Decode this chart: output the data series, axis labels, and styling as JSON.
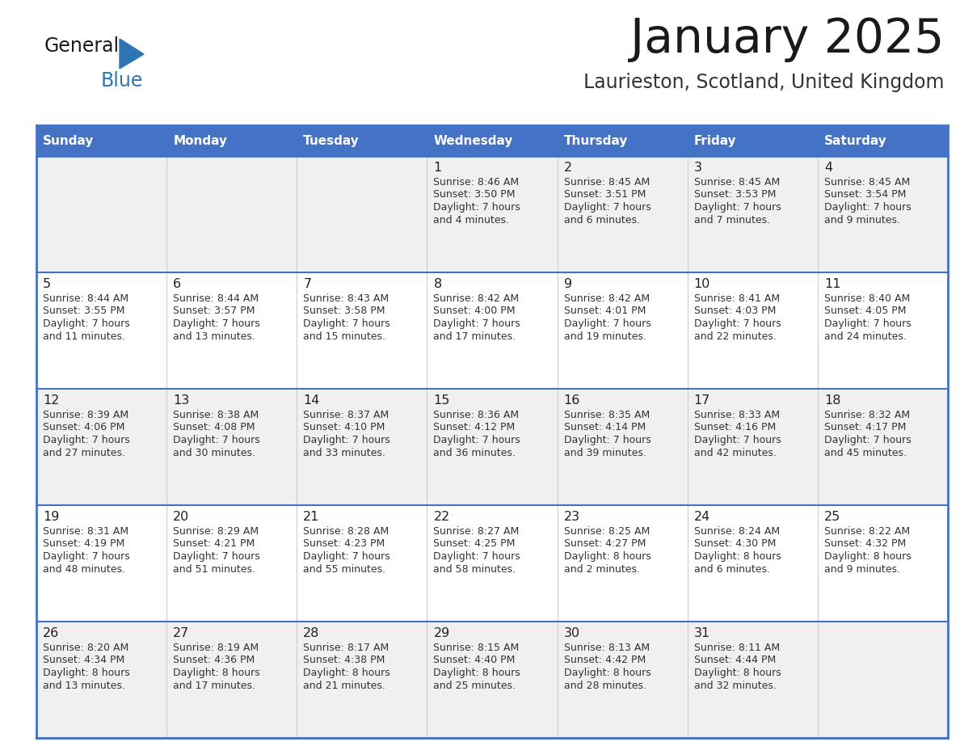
{
  "title": "January 2025",
  "subtitle": "Laurieston, Scotland, United Kingdom",
  "days_of_week": [
    "Sunday",
    "Monday",
    "Tuesday",
    "Wednesday",
    "Thursday",
    "Friday",
    "Saturday"
  ],
  "header_bg": "#4472C4",
  "header_text": "#FFFFFF",
  "cell_bg_odd": "#F0F0F0",
  "cell_bg_even": "#FFFFFF",
  "cell_border_color": "#4472C4",
  "cell_inner_border": "#AAAAAA",
  "day_num_color": "#222222",
  "content_color": "#333333",
  "title_color": "#1a1a1a",
  "subtitle_color": "#333333",
  "logo_general_color": "#1a1a1a",
  "logo_blue_color": "#2E75B6",
  "logo_triangle_color": "#2E75B6",
  "weeks": [
    [
      {
        "day": null,
        "lines": null
      },
      {
        "day": null,
        "lines": null
      },
      {
        "day": null,
        "lines": null
      },
      {
        "day": "1",
        "lines": [
          "Sunrise: 8:46 AM",
          "Sunset: 3:50 PM",
          "Daylight: 7 hours",
          "and 4 minutes."
        ]
      },
      {
        "day": "2",
        "lines": [
          "Sunrise: 8:45 AM",
          "Sunset: 3:51 PM",
          "Daylight: 7 hours",
          "and 6 minutes."
        ]
      },
      {
        "day": "3",
        "lines": [
          "Sunrise: 8:45 AM",
          "Sunset: 3:53 PM",
          "Daylight: 7 hours",
          "and 7 minutes."
        ]
      },
      {
        "day": "4",
        "lines": [
          "Sunrise: 8:45 AM",
          "Sunset: 3:54 PM",
          "Daylight: 7 hours",
          "and 9 minutes."
        ]
      }
    ],
    [
      {
        "day": "5",
        "lines": [
          "Sunrise: 8:44 AM",
          "Sunset: 3:55 PM",
          "Daylight: 7 hours",
          "and 11 minutes."
        ]
      },
      {
        "day": "6",
        "lines": [
          "Sunrise: 8:44 AM",
          "Sunset: 3:57 PM",
          "Daylight: 7 hours",
          "and 13 minutes."
        ]
      },
      {
        "day": "7",
        "lines": [
          "Sunrise: 8:43 AM",
          "Sunset: 3:58 PM",
          "Daylight: 7 hours",
          "and 15 minutes."
        ]
      },
      {
        "day": "8",
        "lines": [
          "Sunrise: 8:42 AM",
          "Sunset: 4:00 PM",
          "Daylight: 7 hours",
          "and 17 minutes."
        ]
      },
      {
        "day": "9",
        "lines": [
          "Sunrise: 8:42 AM",
          "Sunset: 4:01 PM",
          "Daylight: 7 hours",
          "and 19 minutes."
        ]
      },
      {
        "day": "10",
        "lines": [
          "Sunrise: 8:41 AM",
          "Sunset: 4:03 PM",
          "Daylight: 7 hours",
          "and 22 minutes."
        ]
      },
      {
        "day": "11",
        "lines": [
          "Sunrise: 8:40 AM",
          "Sunset: 4:05 PM",
          "Daylight: 7 hours",
          "and 24 minutes."
        ]
      }
    ],
    [
      {
        "day": "12",
        "lines": [
          "Sunrise: 8:39 AM",
          "Sunset: 4:06 PM",
          "Daylight: 7 hours",
          "and 27 minutes."
        ]
      },
      {
        "day": "13",
        "lines": [
          "Sunrise: 8:38 AM",
          "Sunset: 4:08 PM",
          "Daylight: 7 hours",
          "and 30 minutes."
        ]
      },
      {
        "day": "14",
        "lines": [
          "Sunrise: 8:37 AM",
          "Sunset: 4:10 PM",
          "Daylight: 7 hours",
          "and 33 minutes."
        ]
      },
      {
        "day": "15",
        "lines": [
          "Sunrise: 8:36 AM",
          "Sunset: 4:12 PM",
          "Daylight: 7 hours",
          "and 36 minutes."
        ]
      },
      {
        "day": "16",
        "lines": [
          "Sunrise: 8:35 AM",
          "Sunset: 4:14 PM",
          "Daylight: 7 hours",
          "and 39 minutes."
        ]
      },
      {
        "day": "17",
        "lines": [
          "Sunrise: 8:33 AM",
          "Sunset: 4:16 PM",
          "Daylight: 7 hours",
          "and 42 minutes."
        ]
      },
      {
        "day": "18",
        "lines": [
          "Sunrise: 8:32 AM",
          "Sunset: 4:17 PM",
          "Daylight: 7 hours",
          "and 45 minutes."
        ]
      }
    ],
    [
      {
        "day": "19",
        "lines": [
          "Sunrise: 8:31 AM",
          "Sunset: 4:19 PM",
          "Daylight: 7 hours",
          "and 48 minutes."
        ]
      },
      {
        "day": "20",
        "lines": [
          "Sunrise: 8:29 AM",
          "Sunset: 4:21 PM",
          "Daylight: 7 hours",
          "and 51 minutes."
        ]
      },
      {
        "day": "21",
        "lines": [
          "Sunrise: 8:28 AM",
          "Sunset: 4:23 PM",
          "Daylight: 7 hours",
          "and 55 minutes."
        ]
      },
      {
        "day": "22",
        "lines": [
          "Sunrise: 8:27 AM",
          "Sunset: 4:25 PM",
          "Daylight: 7 hours",
          "and 58 minutes."
        ]
      },
      {
        "day": "23",
        "lines": [
          "Sunrise: 8:25 AM",
          "Sunset: 4:27 PM",
          "Daylight: 8 hours",
          "and 2 minutes."
        ]
      },
      {
        "day": "24",
        "lines": [
          "Sunrise: 8:24 AM",
          "Sunset: 4:30 PM",
          "Daylight: 8 hours",
          "and 6 minutes."
        ]
      },
      {
        "day": "25",
        "lines": [
          "Sunrise: 8:22 AM",
          "Sunset: 4:32 PM",
          "Daylight: 8 hours",
          "and 9 minutes."
        ]
      }
    ],
    [
      {
        "day": "26",
        "lines": [
          "Sunrise: 8:20 AM",
          "Sunset: 4:34 PM",
          "Daylight: 8 hours",
          "and 13 minutes."
        ]
      },
      {
        "day": "27",
        "lines": [
          "Sunrise: 8:19 AM",
          "Sunset: 4:36 PM",
          "Daylight: 8 hours",
          "and 17 minutes."
        ]
      },
      {
        "day": "28",
        "lines": [
          "Sunrise: 8:17 AM",
          "Sunset: 4:38 PM",
          "Daylight: 8 hours",
          "and 21 minutes."
        ]
      },
      {
        "day": "29",
        "lines": [
          "Sunrise: 8:15 AM",
          "Sunset: 4:40 PM",
          "Daylight: 8 hours",
          "and 25 minutes."
        ]
      },
      {
        "day": "30",
        "lines": [
          "Sunrise: 8:13 AM",
          "Sunset: 4:42 PM",
          "Daylight: 8 hours",
          "and 28 minutes."
        ]
      },
      {
        "day": "31",
        "lines": [
          "Sunrise: 8:11 AM",
          "Sunset: 4:44 PM",
          "Daylight: 8 hours",
          "and 32 minutes."
        ]
      },
      {
        "day": null,
        "lines": null
      }
    ]
  ]
}
